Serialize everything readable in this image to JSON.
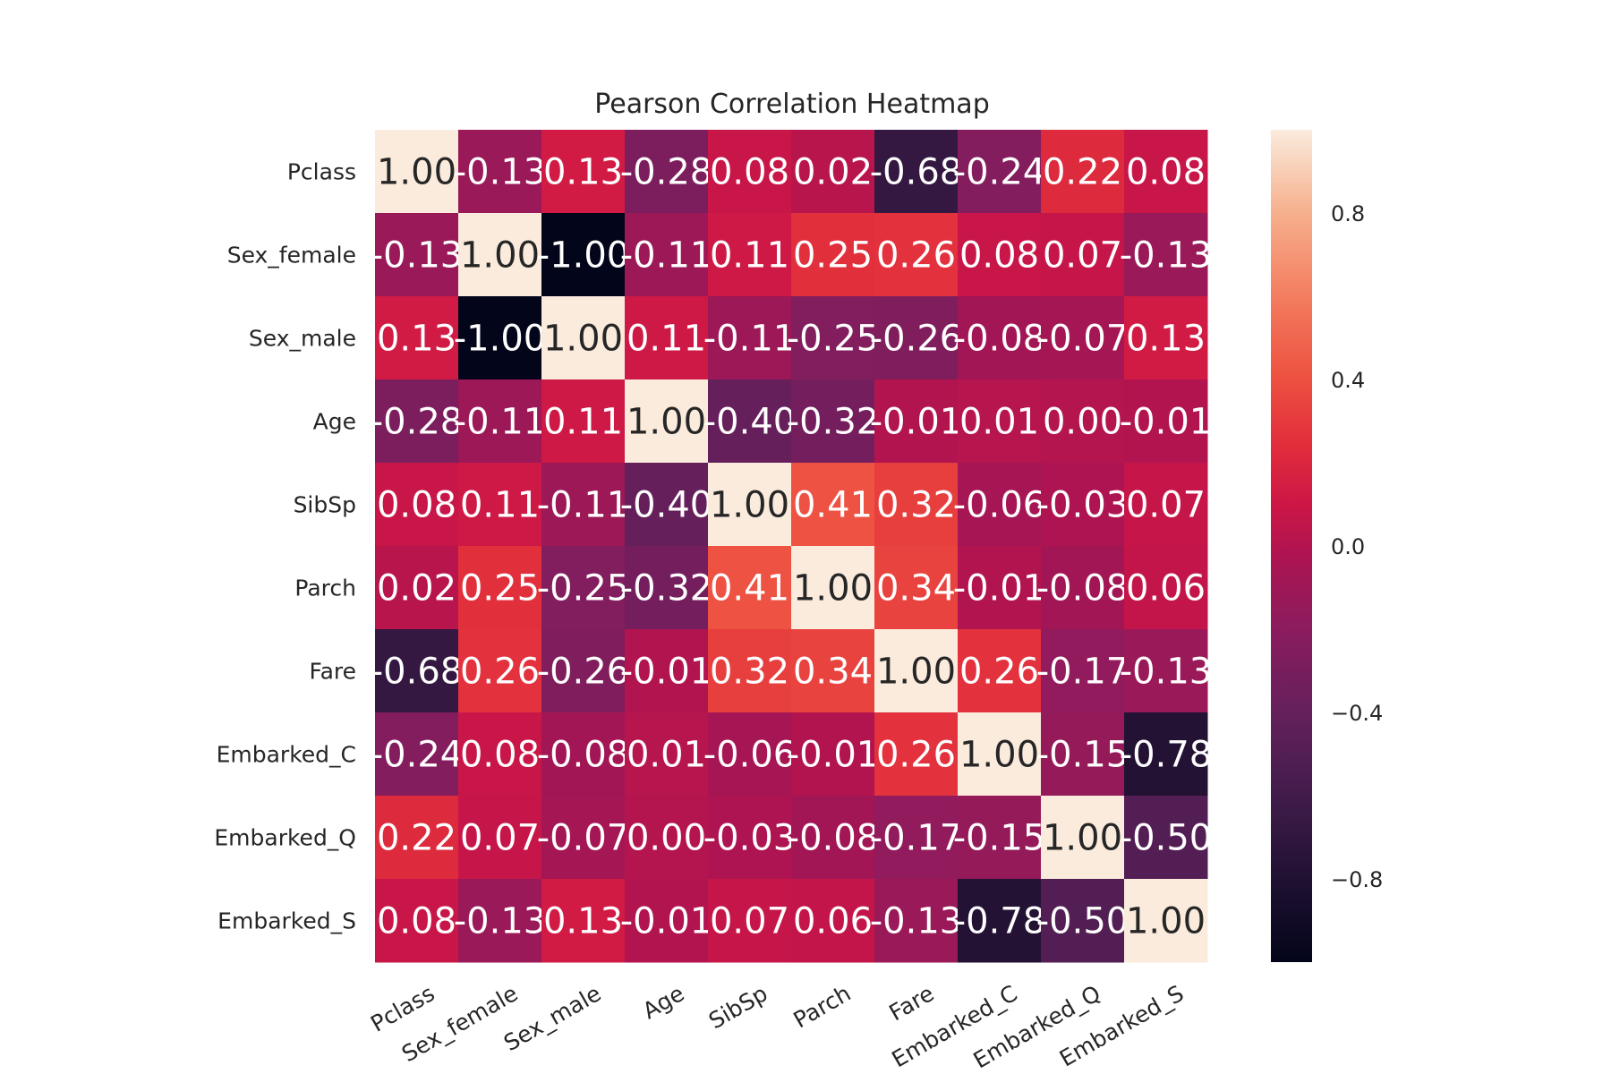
{
  "chart_data": {
    "type": "heatmap",
    "title": "Pearson Correlation Heatmap",
    "rows": [
      "Pclass",
      "Sex_female",
      "Sex_male",
      "Age",
      "SibSp",
      "Parch",
      "Fare",
      "Embarked_C",
      "Embarked_Q",
      "Embarked_S"
    ],
    "columns": [
      "Pclass",
      "Sex_female",
      "Sex_male",
      "Age",
      "SibSp",
      "Parch",
      "Fare",
      "Embarked_C",
      "Embarked_Q",
      "Embarked_S"
    ],
    "values": [
      [
        1.0,
        -0.13,
        0.13,
        -0.28,
        0.08,
        0.02,
        -0.68,
        -0.24,
        0.22,
        0.08
      ],
      [
        -0.13,
        1.0,
        -1.0,
        -0.11,
        0.11,
        0.25,
        0.26,
        0.08,
        0.07,
        -0.13
      ],
      [
        0.13,
        -1.0,
        1.0,
        0.11,
        -0.11,
        -0.25,
        -0.26,
        -0.08,
        -0.07,
        0.13
      ],
      [
        -0.28,
        -0.11,
        0.11,
        1.0,
        -0.4,
        -0.32,
        -0.01,
        0.01,
        -0.0,
        -0.01
      ],
      [
        0.08,
        0.11,
        -0.11,
        -0.4,
        1.0,
        0.41,
        0.32,
        -0.06,
        -0.03,
        0.07
      ],
      [
        0.02,
        0.25,
        -0.25,
        -0.32,
        0.41,
        1.0,
        0.34,
        -0.01,
        -0.08,
        0.06
      ],
      [
        -0.68,
        0.26,
        -0.26,
        -0.01,
        0.32,
        0.34,
        1.0,
        0.26,
        -0.17,
        -0.13
      ],
      [
        -0.24,
        0.08,
        -0.08,
        0.01,
        -0.06,
        -0.01,
        0.26,
        1.0,
        -0.15,
        -0.78
      ],
      [
        0.22,
        0.07,
        -0.07,
        -0.0,
        -0.03,
        -0.08,
        -0.17,
        -0.15,
        1.0,
        -0.5
      ],
      [
        0.08,
        -0.13,
        0.13,
        -0.01,
        0.07,
        0.06,
        -0.13,
        -0.78,
        -0.5,
        1.0
      ]
    ],
    "value_format": "0.00",
    "color_range": [
      -1.0,
      1.0
    ],
    "colormap": "rocket",
    "colorbar_ticks": [
      0.8,
      0.4,
      0.0,
      -0.4,
      -0.8
    ],
    "colorbar_tick_labels": [
      "0.8",
      "0.4",
      "0.0",
      "−0.4",
      "−0.8"
    ],
    "xlabel": "",
    "ylabel": "",
    "grid": false,
    "colorbar_position": "right"
  }
}
